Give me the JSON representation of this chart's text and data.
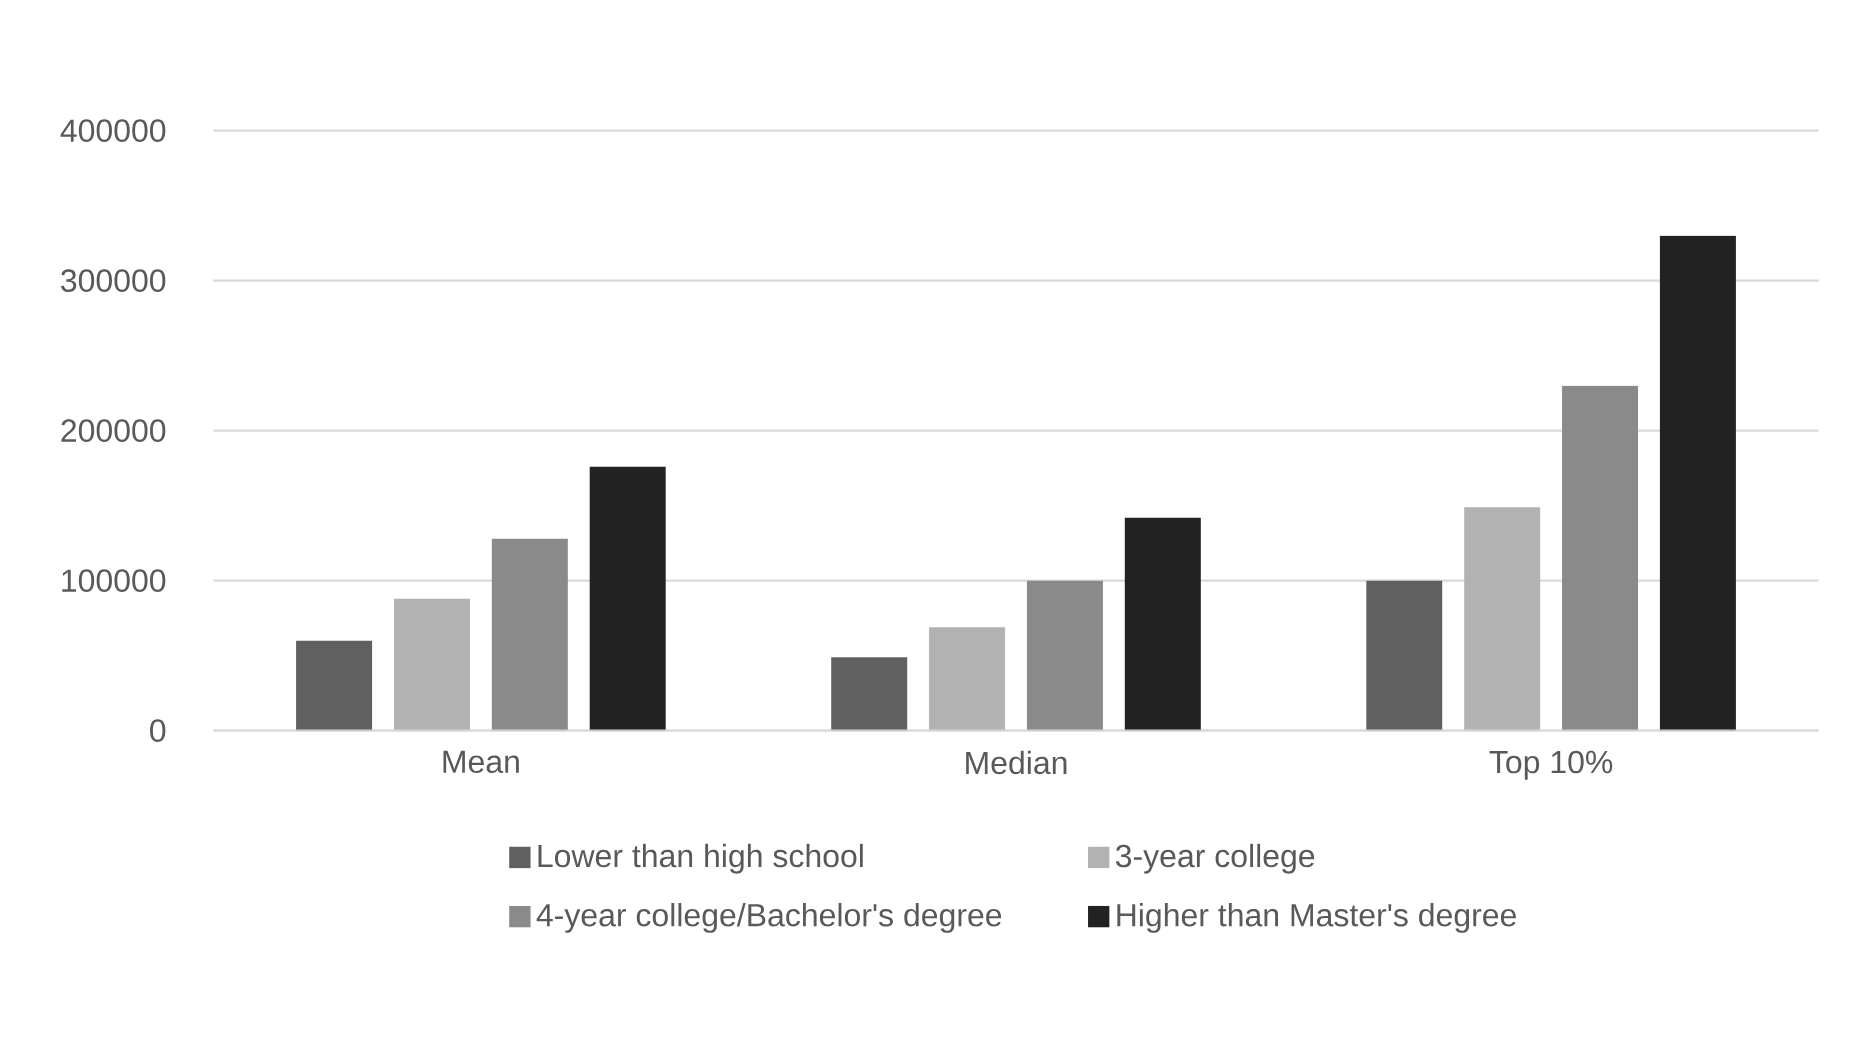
{
  "chart_data": {
    "type": "bar",
    "categories": [
      "Mean",
      "Median",
      "Top 10%"
    ],
    "series": [
      {
        "name": "Lower than high school",
        "color": "#606060",
        "values": [
          60000,
          49000,
          100000
        ]
      },
      {
        "name": "3-year college",
        "color": "#b2b2b2",
        "values": [
          88000,
          69000,
          149000
        ]
      },
      {
        "name": "4-year college/Bachelor's degree",
        "color": "#8a8a8a",
        "values": [
          128000,
          100000,
          230000
        ]
      },
      {
        "name": "Higher than Master's degree",
        "color": "#222222",
        "values": [
          176000,
          142000,
          330000
        ]
      }
    ],
    "ylim": [
      0,
      400000
    ],
    "yticks": [
      0,
      100000,
      200000,
      300000,
      400000
    ],
    "grid": "y",
    "legend": "bottom"
  }
}
